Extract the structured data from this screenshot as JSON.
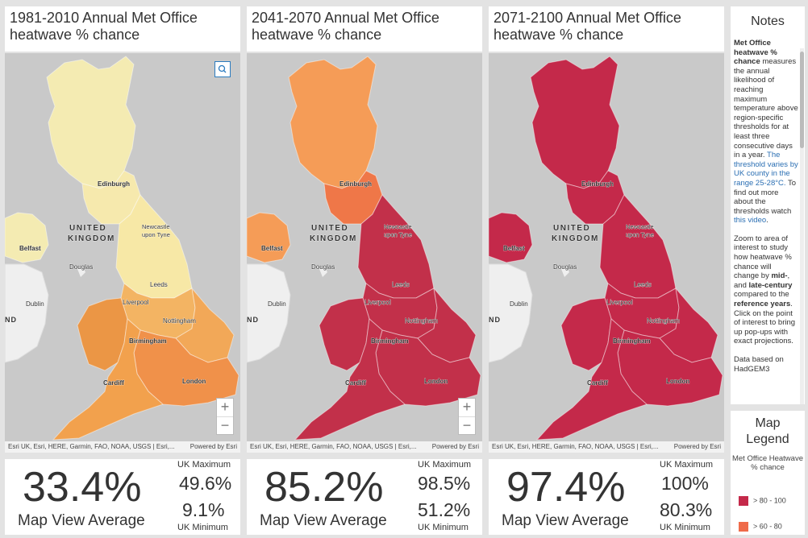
{
  "panels": [
    {
      "title": "1981-2010 Annual Met Office heatwave % chance",
      "average": "33.4%",
      "average_label": "Map View Average",
      "max_label": "UK Maximum",
      "max_value": "49.6%",
      "min_value": "9.1%",
      "min_label": "UK Minimum",
      "colors": {
        "scotland": "#f4ebb2",
        "north": "#f7e8a6",
        "southwest": "#f2a14d",
        "wales": "#eb9645",
        "midlands": "#f3b463",
        "east": "#f2a858",
        "southeast": "#f0914a",
        "northern_ireland": "#f4ebb2",
        "borders": "#f6e9ad"
      }
    },
    {
      "title": "2041-2070 Annual Met Office heatwave % chance",
      "average": "85.2%",
      "average_label": "Map View Average",
      "max_label": "UK Maximum",
      "max_value": "98.5%",
      "min_value": "51.2%",
      "min_label": "UK Minimum",
      "colors": {
        "scotland": "#f59c57",
        "north": "#c2304a",
        "southwest": "#c2304a",
        "wales": "#c2304a",
        "midlands": "#c2304a",
        "east": "#c2304a",
        "southeast": "#c2304a",
        "northern_ireland": "#f59c57",
        "borders": "#ef7748"
      }
    },
    {
      "title": "2071-2100 Annual Met Office heatwave % chance",
      "average": "97.4%",
      "average_label": "Map View Average",
      "max_label": "UK Maximum",
      "max_value": "100%",
      "min_value": "80.3%",
      "min_label": "UK Minimum",
      "colors": {
        "scotland": "#c4294a",
        "north": "#c4294a",
        "southwest": "#c4294a",
        "wales": "#c4294a",
        "midlands": "#c4294a",
        "east": "#c4294a",
        "southeast": "#c4294a",
        "northern_ireland": "#c4294a",
        "borders": "#c4294a"
      }
    }
  ],
  "map_labels": {
    "edinburgh": "Edinburgh",
    "united": "UNITED",
    "kingdom": "KINGDOM",
    "newcastle_1": "Newcastle",
    "newcastle_2": "upon Tyne",
    "belfast": "Belfast",
    "douglas": "Douglas",
    "leeds": "Leeds",
    "liverpool": "Liverpool",
    "dublin": "Dublin",
    "nottingham": "Nottingham",
    "birmingham": "Birmingham",
    "cardiff": "Cardiff",
    "london": "London",
    "ireland_fragment": "ND"
  },
  "attribution": {
    "left": "Esri UK, Esri, HERE, Garmin, FAO, NOAA, USGS | Esri,...",
    "right": "Powered by Esri"
  },
  "zoom": {
    "in": "+",
    "out": "−"
  },
  "notes": {
    "title": "Notes",
    "p1_bold": "Met Office heatwave % chance",
    "p1_text": " measures the annual likelihood of reaching maximum temperature above region-specific thresholds for at least three consecutive days in a year. ",
    "p1_link1": "The threshold varies by UK county in the range 25-28°C.",
    "p1_text2": " To find out more about the thresholds watch ",
    "p1_link2": "this video",
    "p1_end": ".",
    "p2_a": "Zoom to area of interest to study how heatwave % chance will change by ",
    "p2_mid": "mid-",
    "p2_b": ", and ",
    "p2_late": "late-century",
    "p2_c": " compared to the ",
    "p2_ref": "reference years",
    "p2_d": ". Click on the point of interest to bring up pop-ups with exact projections.",
    "p3": "Data based on HadGEM3"
  },
  "legend": {
    "title_1": "Map",
    "title_2": "Legend",
    "subtitle": "Met Office Heatwave % chance",
    "rows": [
      {
        "label": "> 80 - 100",
        "color": "#c4294a"
      },
      {
        "label": "> 60 - 80",
        "color": "#ef6b4a"
      }
    ]
  }
}
